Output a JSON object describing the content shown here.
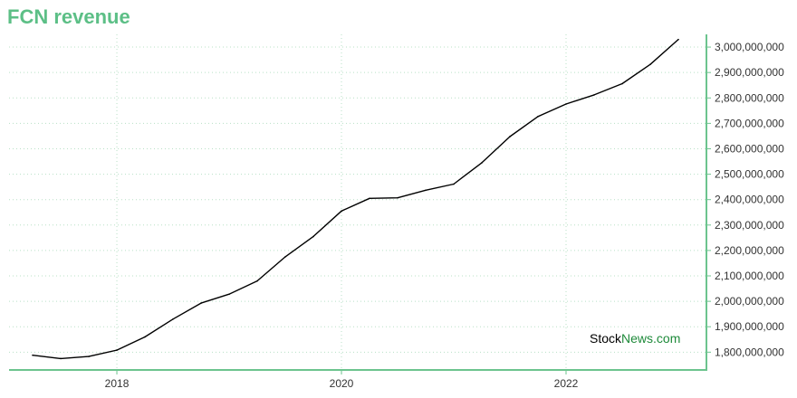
{
  "title": "FCN revenue",
  "watermark": {
    "part1": "Stock",
    "part2": "News.com"
  },
  "colors": {
    "title": "#5cbf86",
    "axis": "#6cc48e",
    "grid": "#b8e0c6",
    "line": "#000000",
    "watermark_accent": "#1e8a3a"
  },
  "chart_data": {
    "type": "line",
    "title": "FCN revenue",
    "xlabel": "",
    "ylabel": "",
    "grid": true,
    "y_axis_position": "right",
    "xlim": [
      2017.04,
      2023.25
    ],
    "ylim": [
      1730000000,
      3050000000
    ],
    "x_ticks": [
      2018,
      2020,
      2022
    ],
    "x_tick_labels": [
      "2018",
      "2020",
      "2022"
    ],
    "y_ticks": [
      1800000000,
      1900000000,
      2000000000,
      2100000000,
      2200000000,
      2300000000,
      2400000000,
      2500000000,
      2600000000,
      2700000000,
      2800000000,
      2900000000,
      3000000000
    ],
    "y_tick_labels": [
      "1,800,000,000",
      "1,900,000,000",
      "2,000,000,000",
      "2,100,000,000",
      "2,200,000,000",
      "2,300,000,000",
      "2,400,000,000",
      "2,500,000,000",
      "2,600,000,000",
      "2,700,000,000",
      "2,800,000,000",
      "2,900,000,000",
      "3,000,000,000"
    ],
    "series": [
      {
        "x": [
          2017.25,
          2017.5,
          2017.75,
          2018.0,
          2018.25,
          2018.5,
          2018.75,
          2019.0,
          2019.25,
          2019.5,
          2019.75,
          2020.0,
          2020.25,
          2020.5,
          2020.75,
          2021.0,
          2021.25,
          2021.5,
          2021.75,
          2022.0,
          2022.25,
          2022.5,
          2022.75,
          2023.0
        ],
        "values": [
          1788000000,
          1775000000,
          1783000000,
          1808000000,
          1860000000,
          1930000000,
          1993000000,
          2028000000,
          2080000000,
          2175000000,
          2255000000,
          2355000000,
          2405000000,
          2407000000,
          2437000000,
          2461000000,
          2545000000,
          2648000000,
          2727000000,
          2776000000,
          2812000000,
          2856000000,
          2932000000,
          3030000000
        ]
      }
    ]
  }
}
